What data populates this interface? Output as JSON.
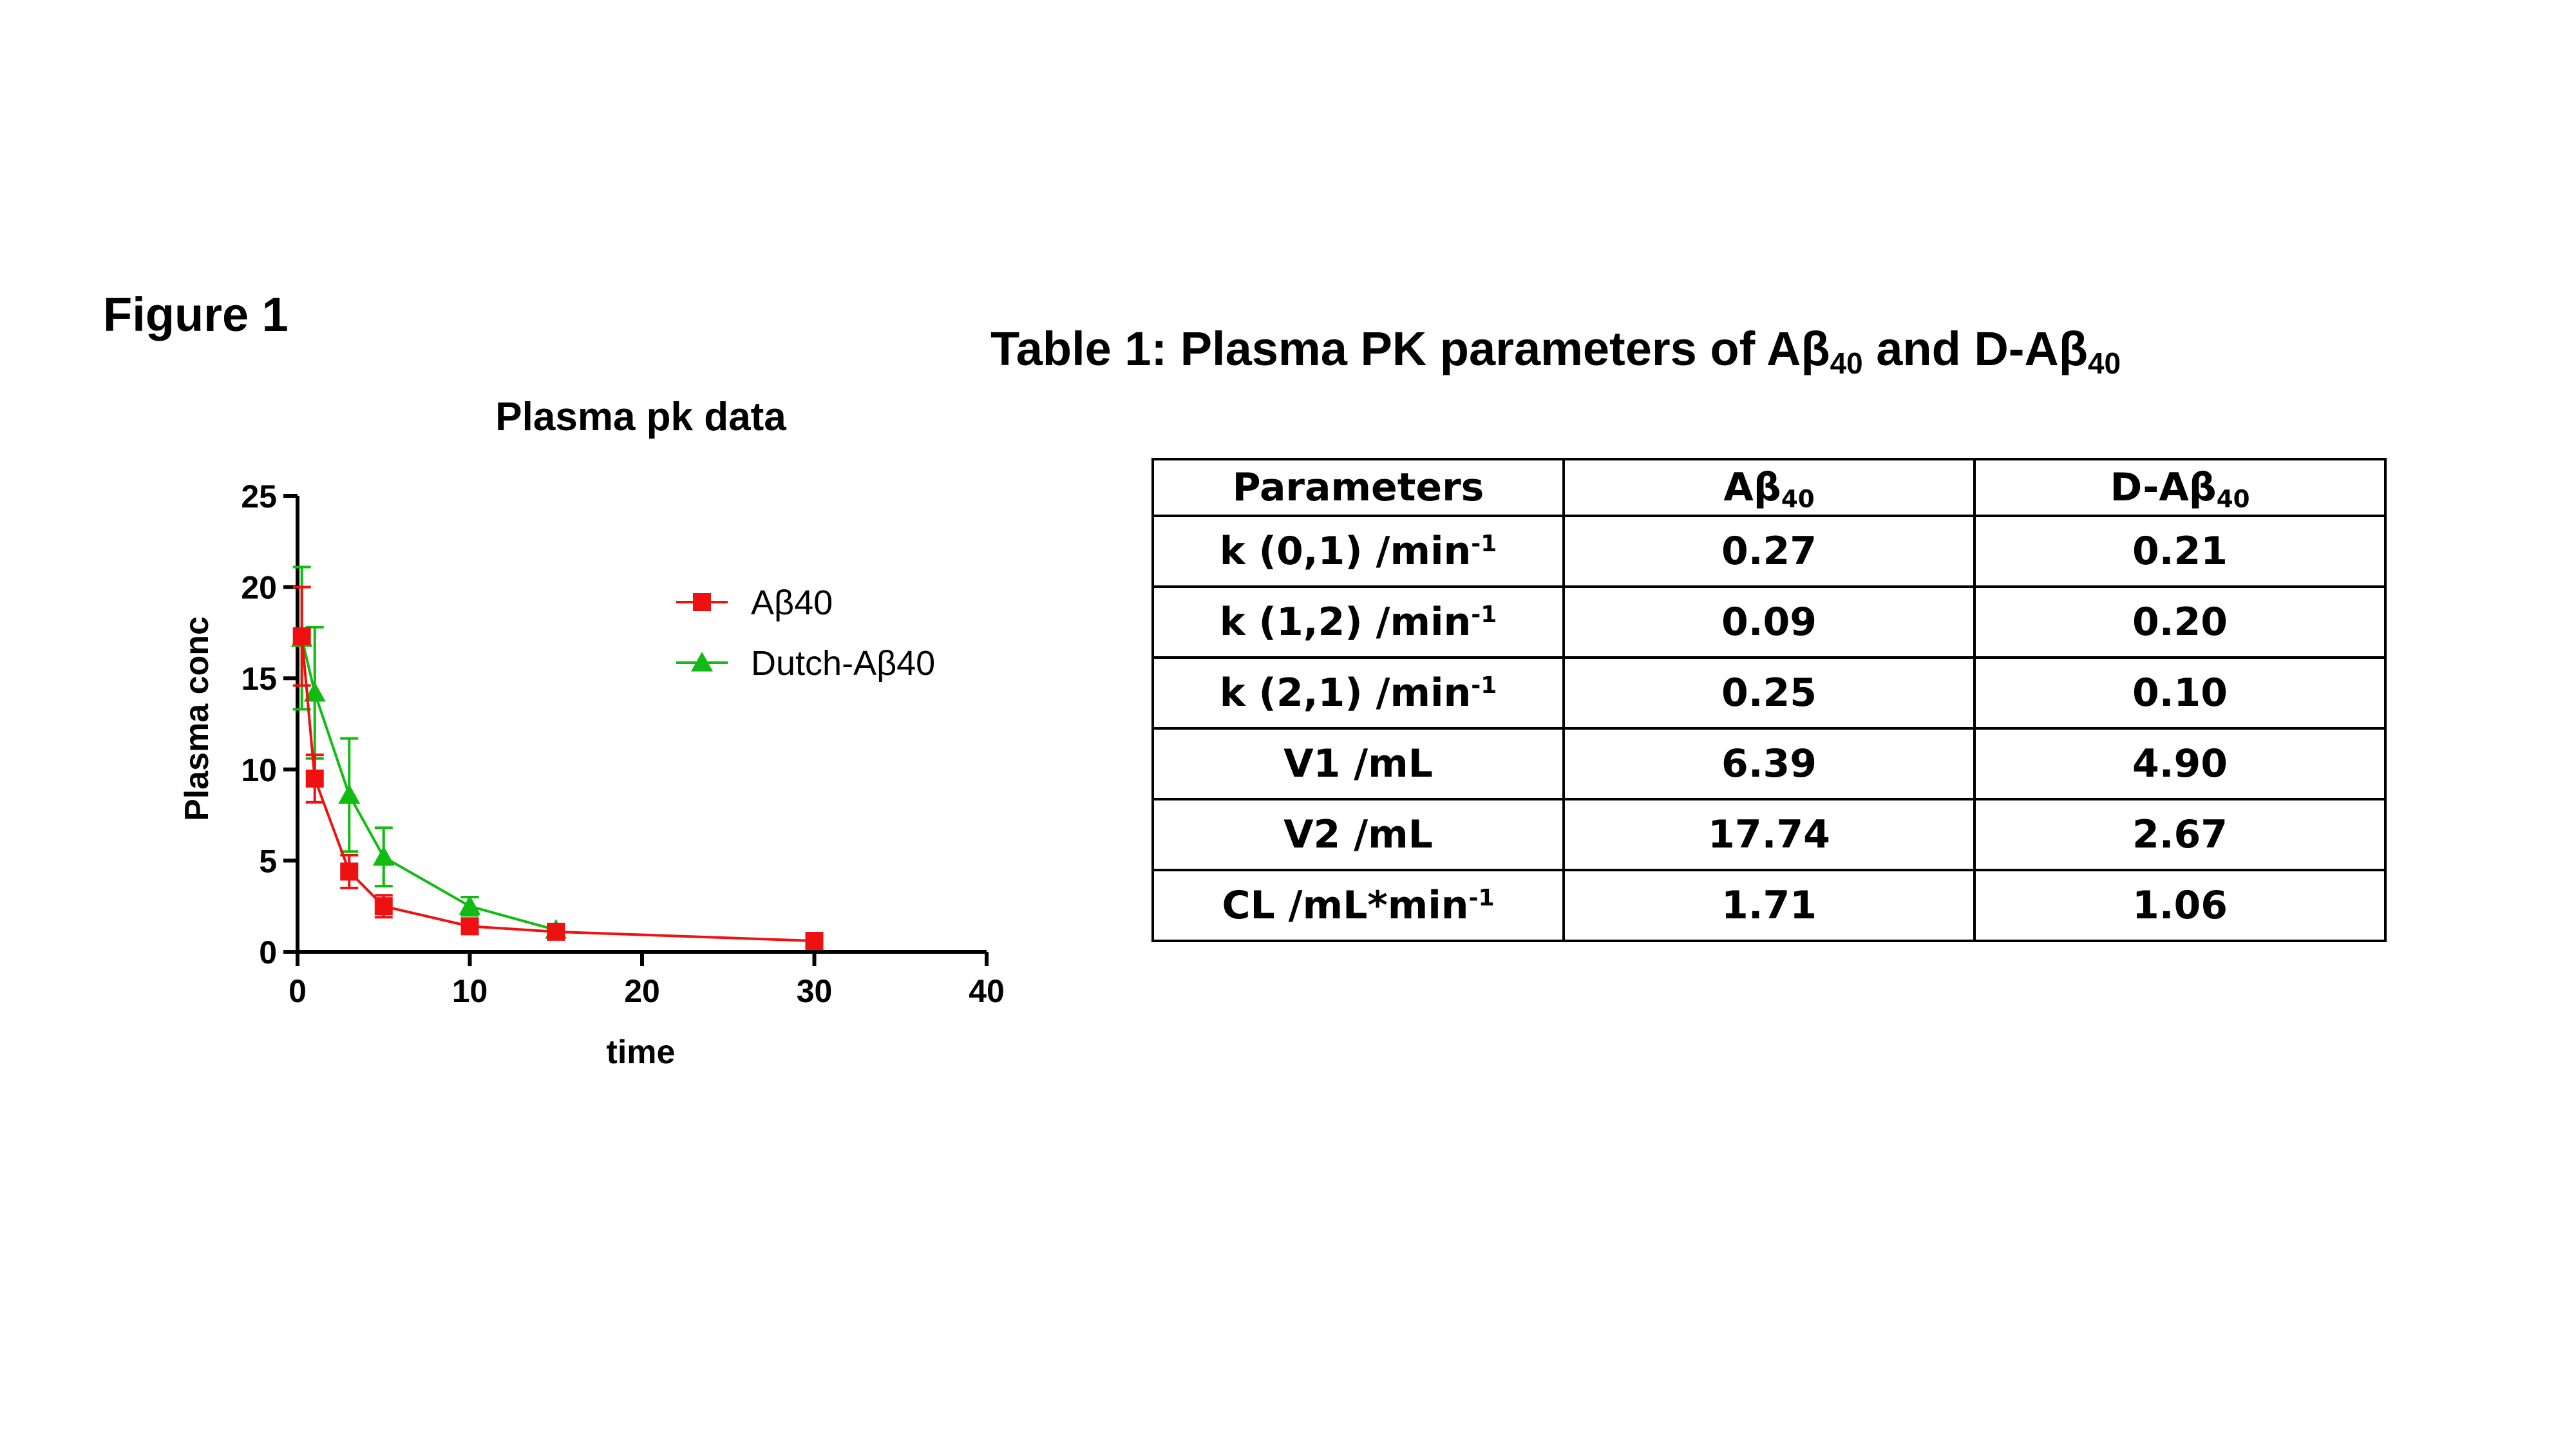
{
  "figure_label": "Figure 1",
  "table_title": {
    "prefix": "Table 1: Plasma PK parameters of Aβ",
    "sub1": "40",
    "middle": " and D-Aβ",
    "sub2": "40"
  },
  "table": {
    "headers": [
      {
        "text": "Parameters",
        "sub": ""
      },
      {
        "text": "Aβ",
        "sub": "40"
      },
      {
        "text": "D-Aβ",
        "sub": "40"
      }
    ],
    "rows": [
      {
        "param": "k (0,1) /min",
        "sup": "-1",
        "abeta40": "0.27",
        "d_abeta40": "0.21"
      },
      {
        "param": "k (1,2) /min",
        "sup": "-1",
        "abeta40": "0.09",
        "d_abeta40": "0.20"
      },
      {
        "param": "k (2,1) /min",
        "sup": "-1",
        "abeta40": "0.25",
        "d_abeta40": "0.10"
      },
      {
        "param": "V1 /mL",
        "sup": "",
        "abeta40": "6.39",
        "d_abeta40": "4.90"
      },
      {
        "param": "V2 /mL",
        "sup": "",
        "abeta40": "17.74",
        "d_abeta40": "2.67"
      },
      {
        "param": "CL /mL*min",
        "sup": "-1",
        "abeta40": "1.71",
        "d_abeta40": "1.06"
      }
    ]
  },
  "chart_data": {
    "type": "line",
    "title": "Plasma pk data",
    "xlabel": "time",
    "ylabel": "Plasma conc",
    "xlim": [
      0,
      40
    ],
    "ylim": [
      0,
      25
    ],
    "xticks": [
      0,
      10,
      20,
      30,
      40
    ],
    "yticks": [
      0,
      5,
      10,
      15,
      20,
      25
    ],
    "grid": false,
    "legend_position": "top-right",
    "series": [
      {
        "name": "Aβ40",
        "color": "#ee1111",
        "marker": "square",
        "x": [
          0.25,
          1,
          3,
          5,
          10,
          15,
          30
        ],
        "y": [
          17.3,
          9.5,
          4.4,
          2.5,
          1.4,
          1.1,
          0.6
        ],
        "err": [
          2.7,
          1.3,
          0.9,
          0.6,
          0.3,
          0.3,
          0.2
        ]
      },
      {
        "name": "Dutch-Aβ40",
        "color": "#11bb11",
        "marker": "triangle",
        "x": [
          0.25,
          1,
          3,
          5,
          10,
          15
        ],
        "y": [
          17.2,
          14.2,
          8.6,
          5.2,
          2.5,
          1.2
        ],
        "err": [
          3.9,
          3.6,
          3.1,
          1.6,
          0.5,
          0.3
        ]
      }
    ]
  }
}
